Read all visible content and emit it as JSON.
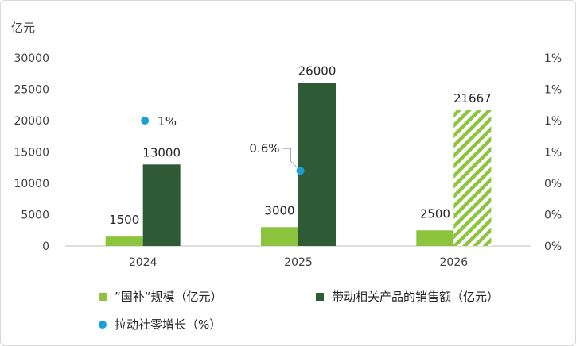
{
  "chart_data": {
    "type": "bar",
    "y_unit_label": "亿元",
    "categories": [
      "2024",
      "2025",
      "2026"
    ],
    "left_axis": {
      "min": 0,
      "max": 30000,
      "step": 5000,
      "ticks": [
        "0",
        "5000",
        "10000",
        "15000",
        "20000",
        "25000",
        "30000"
      ]
    },
    "right_axis": {
      "ticks": [
        "0%",
        "0%",
        "0%",
        "1%",
        "1%",
        "1%",
        "1%"
      ]
    },
    "series": [
      {
        "name": "”国补“规模（亿元）",
        "type": "bar",
        "color": "#8cc43d",
        "values": [
          1500,
          3000,
          2500
        ],
        "labels": [
          "1500",
          "3000",
          "2500"
        ]
      },
      {
        "name": "带动相关产品的销售额（亿元）",
        "type": "bar",
        "color": "#2f5a36",
        "hatched_color": "#8cc43d",
        "hatched_index": 2,
        "values": [
          13000,
          26000,
          21667
        ],
        "labels": [
          "13000",
          "26000",
          "21667"
        ]
      },
      {
        "name": "拉动社零增长（%）",
        "type": "scatter",
        "color": "#1aa0d8",
        "values": [
          1.0,
          0.6,
          null
        ],
        "labels": [
          "1%",
          "0.6%",
          ""
        ]
      }
    ]
  }
}
